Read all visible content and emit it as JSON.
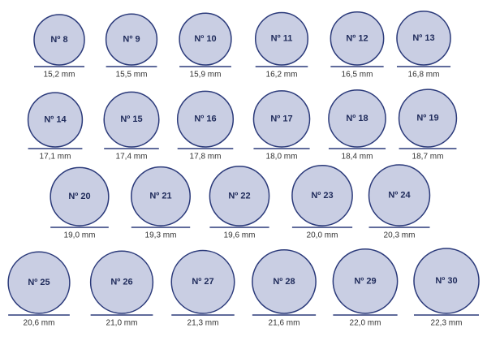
{
  "rows": [
    [
      {
        "label": "Nº 8",
        "diameter": "15,2 mm"
      },
      {
        "label": "Nº 9",
        "diameter": "15,5 mm"
      },
      {
        "label": "Nº 10",
        "diameter": "15,9 mm"
      },
      {
        "label": "Nº 11",
        "diameter": "16,2 mm"
      },
      {
        "label": "Nº 12",
        "diameter": "16,5 mm"
      },
      {
        "label": "Nº 13",
        "diameter": "16,8 mm"
      }
    ],
    [
      {
        "label": "Nº 14",
        "diameter": "17,1 mm"
      },
      {
        "label": "Nº 15",
        "diameter": "17,4 mm"
      },
      {
        "label": "Nº 16",
        "diameter": "17,8 mm"
      },
      {
        "label": "Nº 17",
        "diameter": "18,0 mm"
      },
      {
        "label": "Nº 18",
        "diameter": "18,4 mm"
      },
      {
        "label": "Nº 19",
        "diameter": "18,7 mm"
      }
    ],
    [
      {
        "label": "Nº 20",
        "diameter": "19,0 mm"
      },
      {
        "label": "Nº 21",
        "diameter": "19,3 mm"
      },
      {
        "label": "Nº 22",
        "diameter": "19,6 mm"
      },
      {
        "label": "Nº 23",
        "diameter": "20,0 mm"
      },
      {
        "label": "Nº 24",
        "diameter": "20,3 mm"
      }
    ],
    [
      {
        "label": "Nº 25",
        "diameter": "20,6 mm"
      },
      {
        "label": "Nº 26",
        "diameter": "21,0 mm"
      },
      {
        "label": "Nº 27",
        "diameter": "21,3 mm"
      },
      {
        "label": "Nº 28",
        "diameter": "21,6 mm"
      },
      {
        "label": "Nº 29",
        "diameter": "22,0 mm"
      },
      {
        "label": "Nº 30",
        "diameter": "22,3 mm"
      }
    ]
  ]
}
